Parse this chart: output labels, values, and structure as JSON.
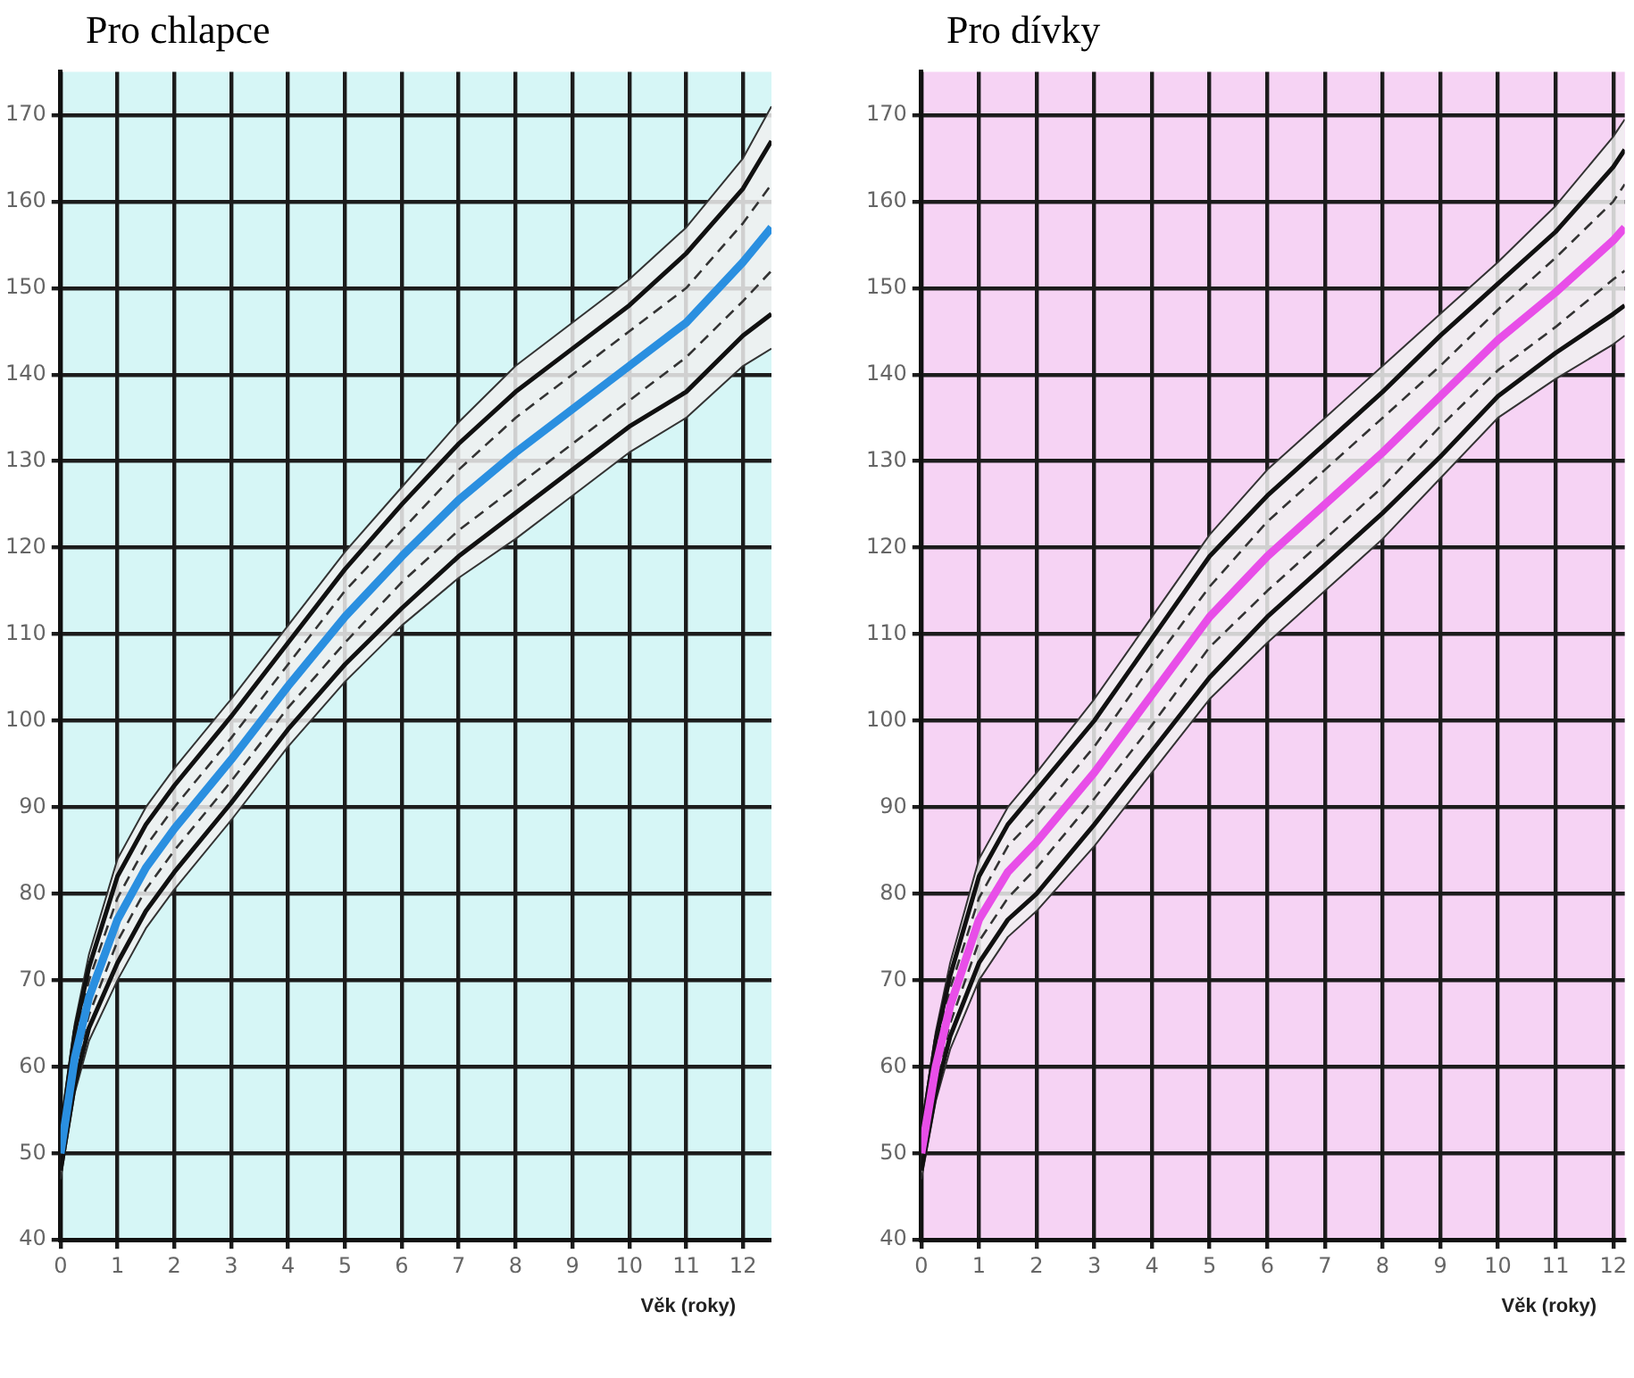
{
  "chart_data": [
    {
      "type": "line",
      "title": "Pro chlapce",
      "xlabel": "Věk (roky)",
      "x": [
        0,
        0.25,
        0.5,
        1,
        1.5,
        2,
        3,
        4,
        5,
        6,
        7,
        8,
        9,
        10,
        11,
        12,
        12.5
      ],
      "xlim": [
        0,
        12.5
      ],
      "xticks": [
        0,
        1,
        2,
        3,
        4,
        5,
        6,
        7,
        8,
        9,
        10,
        11,
        12
      ],
      "ylim": [
        40,
        175
      ],
      "yticks": [
        40,
        50,
        60,
        70,
        80,
        90,
        100,
        110,
        120,
        130,
        140,
        150,
        160,
        170
      ],
      "grid": true,
      "legend": false,
      "marker": "none",
      "series": [
        {
          "color": "#2a8fe0",
          "values": [
            50,
            61,
            68,
            77,
            83,
            87.5,
            95.5,
            104,
            112,
            119,
            125.5,
            131,
            136,
            141,
            146,
            153,
            157
          ],
          "lower": [
            47,
            57,
            63,
            70,
            76,
            80.5,
            88.5,
            97,
            104.5,
            111,
            116.5,
            121,
            126,
            131,
            135,
            141,
            143
          ],
          "upper": [
            53,
            65,
            73,
            84,
            90,
            94.5,
            102.5,
            111,
            119.5,
            127,
            134.5,
            141,
            146,
            151,
            157,
            165,
            171
          ]
        },
        {
          "color": "#111111",
          "values": [
            52,
            64,
            71.5,
            82,
            88,
            92.5,
            100.5,
            109,
            117.5,
            125,
            132,
            138,
            143,
            148,
            154,
            161.5,
            167
          ]
        },
        {
          "color": "#111111",
          "values": [
            48,
            58,
            64.5,
            72,
            78,
            82.5,
            90.5,
            99,
            106.5,
            113,
            119,
            124,
            129,
            134,
            138,
            144.5,
            147
          ]
        },
        {
          "color": "#333333",
          "values": [
            53,
            65,
            73,
            84,
            90,
            94.5,
            102.5,
            111,
            119.5,
            127,
            134.5,
            141,
            146,
            151,
            157,
            165,
            171
          ]
        },
        {
          "color": "#333333",
          "values": [
            47,
            57,
            63,
            70,
            76,
            80.5,
            88.5,
            97,
            104.5,
            111,
            116.5,
            121,
            126,
            131,
            135,
            141,
            143
          ]
        },
        {
          "color": "#333333",
          "line_style": "dashed",
          "values": [
            51,
            62.5,
            70,
            79.5,
            85.5,
            90,
            98,
            106.5,
            115,
            122,
            129,
            135,
            140,
            145,
            150,
            157.5,
            162
          ]
        },
        {
          "color": "#333333",
          "line_style": "dashed",
          "values": [
            49,
            59.5,
            66,
            74.5,
            80.5,
            85,
            93,
            101.5,
            109,
            116,
            122,
            127,
            132,
            137,
            142,
            148.5,
            152
          ]
        }
      ]
    },
    {
      "type": "line",
      "title": "Pro dívky",
      "xlabel": "Věk (roky)",
      "x": [
        0,
        0.25,
        0.5,
        1,
        1.5,
        2,
        3,
        4,
        5,
        6,
        7,
        8,
        9,
        10,
        11,
        12,
        12.2
      ],
      "xlim": [
        0,
        12.2
      ],
      "xticks": [
        0,
        1,
        2,
        3,
        4,
        5,
        6,
        7,
        8,
        9,
        10,
        11,
        12
      ],
      "ylim": [
        40,
        175
      ],
      "yticks": [
        40,
        50,
        60,
        70,
        80,
        90,
        100,
        110,
        120,
        130,
        140,
        150,
        160,
        170
      ],
      "grid": true,
      "legend": false,
      "marker": "none",
      "series": [
        {
          "color": "#e84ee8",
          "values": [
            50,
            60,
            67,
            77,
            82.5,
            86,
            94,
            103,
            112,
            119,
            125,
            131,
            137.5,
            144,
            149.5,
            155.5,
            157
          ],
          "lower": [
            47,
            56,
            62,
            70,
            75,
            78,
            85.5,
            94,
            102.5,
            109,
            115,
            121,
            128,
            135,
            139.5,
            143.5,
            144.5
          ],
          "upper": [
            53,
            64,
            72,
            84,
            90,
            94,
            102.5,
            112,
            121.5,
            129,
            135,
            141,
            147,
            153,
            159.5,
            167.5,
            169.5
          ]
        },
        {
          "color": "#111111",
          "values": [
            52,
            63,
            70.5,
            82,
            88,
            92,
            100,
            109.5,
            119,
            126,
            132,
            138,
            144.5,
            150.5,
            156.5,
            164,
            166
          ]
        },
        {
          "color": "#111111",
          "values": [
            48,
            57,
            63.5,
            72,
            77,
            80,
            88,
            96.5,
            105,
            112,
            118,
            124,
            130.5,
            137.5,
            142.5,
            147,
            148
          ]
        },
        {
          "color": "#333333",
          "values": [
            53,
            64,
            72,
            84,
            90,
            94,
            102.5,
            112,
            121.5,
            129,
            135,
            141,
            147,
            153,
            159.5,
            167.5,
            169.5
          ]
        },
        {
          "color": "#333333",
          "values": [
            47,
            56,
            62,
            70,
            75,
            78,
            85.5,
            94,
            102.5,
            109,
            115,
            121,
            128,
            135,
            139.5,
            143.5,
            144.5
          ]
        },
        {
          "color": "#333333",
          "line_style": "dashed",
          "values": [
            51,
            61.5,
            69,
            79.5,
            85.5,
            89,
            97,
            106.5,
            115.5,
            123,
            129,
            135,
            141,
            147.5,
            153.5,
            160,
            162
          ]
        },
        {
          "color": "#333333",
          "line_style": "dashed",
          "values": [
            49,
            58.5,
            65,
            74.5,
            79.5,
            83,
            91,
            99.5,
            108.5,
            115,
            121,
            127,
            134,
            140.5,
            145.5,
            151,
            152
          ]
        }
      ]
    }
  ]
}
